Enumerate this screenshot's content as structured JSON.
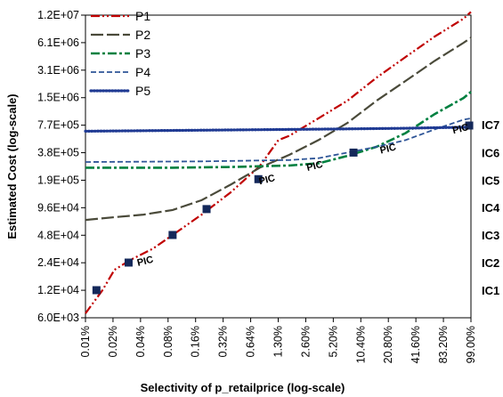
{
  "chart_data": {
    "type": "line",
    "title": "",
    "xlabel": "Selectivity of p_retailprice (log-scale)",
    "ylabel": "Estimated Cost  (log-scale)",
    "x_scale": "log",
    "y_scale": "log",
    "x_ticks": [
      "0.01%",
      "0.02%",
      "0.04%",
      "0.08%",
      "0.16%",
      "0.32%",
      "0.64%",
      "1.30%",
      "2.60%",
      "5.20%",
      "10.40%",
      "20.80%",
      "41.60%",
      "83.20%",
      "99.00%"
    ],
    "y_ticks": [
      "6.0E+03",
      "1.2E+04",
      "2.4E+04",
      "4.8E+04",
      "9.6E+04",
      "1.9E+05",
      "3.8E+05",
      "7.7E+05",
      "1.5E+06",
      "3.1E+06",
      "6.1E+06",
      "1.2E+07"
    ],
    "xlim": [
      0.01,
      99
    ],
    "ylim": [
      6000,
      12000000
    ],
    "grid": false,
    "legend_position": "top-left",
    "series": [
      {
        "name": "P1",
        "color": "#C00000",
        "dash": "dash-dot-dot",
        "points": [
          [
            0.01,
            6700
          ],
          [
            0.015,
            12000
          ],
          [
            0.02,
            20000
          ],
          [
            0.03,
            26000
          ],
          [
            0.05,
            34000
          ],
          [
            0.08,
            48000
          ],
          [
            0.16,
            80000
          ],
          [
            0.32,
            140000
          ],
          [
            0.64,
            270000
          ],
          [
            1.0,
            520000
          ],
          [
            1.3,
            580000
          ],
          [
            2.6,
            900000
          ],
          [
            5.2,
            1400000
          ],
          [
            10.4,
            2500000
          ],
          [
            20.8,
            4200000
          ],
          [
            41.6,
            7000000
          ],
          [
            83.2,
            11000000
          ],
          [
            99,
            13000000
          ]
        ]
      },
      {
        "name": "P2",
        "color": "#4A4A3A",
        "dash": "long-dash",
        "points": [
          [
            0.01,
            70000
          ],
          [
            0.02,
            75000
          ],
          [
            0.04,
            80000
          ],
          [
            0.08,
            90000
          ],
          [
            0.16,
            115000
          ],
          [
            0.32,
            170000
          ],
          [
            0.64,
            260000
          ],
          [
            1.3,
            360000
          ],
          [
            2.6,
            520000
          ],
          [
            5.2,
            800000
          ],
          [
            10.4,
            1400000
          ],
          [
            20.8,
            2300000
          ],
          [
            41.6,
            3800000
          ],
          [
            83.2,
            6000000
          ],
          [
            99,
            6800000
          ]
        ]
      },
      {
        "name": "P3",
        "color": "#008040",
        "dash": "dash-dot",
        "points": [
          [
            0.01,
            260000
          ],
          [
            0.08,
            260000
          ],
          [
            0.32,
            265000
          ],
          [
            1.3,
            275000
          ],
          [
            2.6,
            290000
          ],
          [
            5.2,
            350000
          ],
          [
            10.4,
            440000
          ],
          [
            20.8,
            620000
          ],
          [
            41.6,
            1000000
          ],
          [
            83.2,
            1500000
          ],
          [
            99,
            1750000
          ]
        ]
      },
      {
        "name": "P4",
        "color": "#2E5597",
        "dash": "dash",
        "points": [
          [
            0.01,
            300000
          ],
          [
            0.16,
            305000
          ],
          [
            1.3,
            315000
          ],
          [
            2.6,
            330000
          ],
          [
            5.2,
            380000
          ],
          [
            10.4,
            440000
          ],
          [
            20.8,
            520000
          ],
          [
            41.6,
            680000
          ],
          [
            83.2,
            870000
          ],
          [
            99,
            900000
          ]
        ]
      },
      {
        "name": "P5",
        "color": "#1F3A93",
        "dash": "dot",
        "points": [
          [
            0.01,
            650000
          ],
          [
            1.3,
            680000
          ],
          [
            5.2,
            690000
          ],
          [
            20.8,
            700000
          ],
          [
            41.6,
            710000
          ],
          [
            99,
            720000
          ]
        ]
      }
    ],
    "markers": [
      {
        "x": 0.013,
        "y": 12000
      },
      {
        "x": 0.028,
        "y": 24000
      },
      {
        "x": 0.08,
        "y": 48000
      },
      {
        "x": 0.18,
        "y": 92000
      },
      {
        "x": 0.62,
        "y": 195000
      },
      {
        "x": 6.0,
        "y": 380000
      },
      {
        "x": 95,
        "y": 750000
      }
    ],
    "pic_annotations": [
      {
        "text": "PIC",
        "x": 0.035,
        "y": 22000
      },
      {
        "x": 0.64,
        "y": 170000,
        "text": "PIC"
      },
      {
        "x": 2.0,
        "y": 240000,
        "text": "PIC"
      },
      {
        "x": 11.5,
        "y": 370000,
        "text": "PIC"
      },
      {
        "x": 65,
        "y": 610000,
        "text": "PIC"
      }
    ],
    "iso_cost_labels": [
      {
        "text": "IC1",
        "y": 12000
      },
      {
        "text": "IC2",
        "y": 24000
      },
      {
        "text": "IC3",
        "y": 48000
      },
      {
        "text": "IC4",
        "y": 96000
      },
      {
        "text": "IC5",
        "y": 190000
      },
      {
        "text": "IC6",
        "y": 380000
      },
      {
        "text": "IC7",
        "y": 770000
      }
    ]
  }
}
